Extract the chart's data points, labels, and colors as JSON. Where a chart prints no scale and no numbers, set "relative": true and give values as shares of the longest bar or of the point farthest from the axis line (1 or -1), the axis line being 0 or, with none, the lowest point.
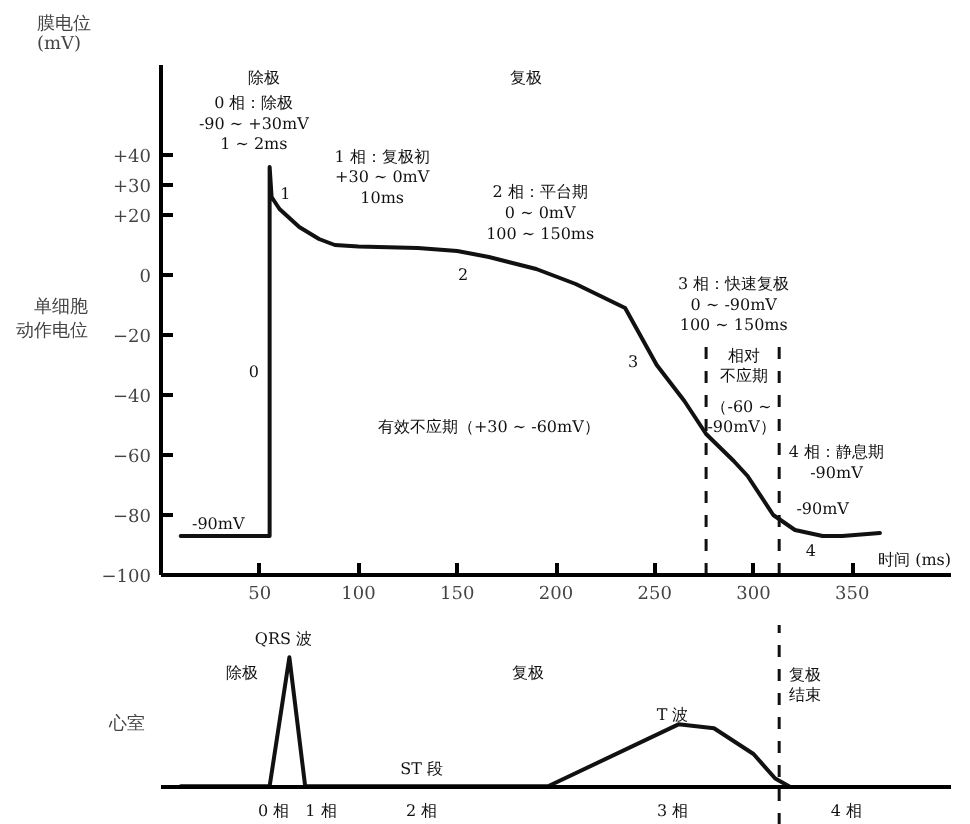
{
  "chart_data": [
    {
      "type": "line",
      "title": "单细胞动作电位",
      "ylabel": "膜电位\n(mV)",
      "xlabel": "时间 (ms)",
      "x": [
        10,
        55,
        55,
        56,
        60,
        70,
        80,
        88,
        100,
        130,
        150,
        166,
        190,
        210,
        235,
        251,
        265,
        276,
        290,
        297,
        310,
        321,
        335,
        345,
        364
      ],
      "series": [
        {
          "color": "#111111",
          "values": [
            -87,
            -87,
            36,
            26,
            22,
            16,
            12,
            10,
            9.5,
            9,
            8,
            6,
            2,
            -3,
            -11,
            -30,
            -42,
            -53,
            -62,
            -67,
            -80,
            -85,
            -87,
            -87,
            -86
          ]
        }
      ],
      "xlim": [
        0,
        400
      ],
      "ylim": [
        -100,
        70
      ],
      "xticks": [
        50,
        100,
        150,
        200,
        250,
        300,
        350
      ],
      "yticks": [
        {
          "value": 40,
          "label": "+40"
        },
        {
          "value": 30,
          "label": "+30"
        },
        {
          "value": 20,
          "label": "+20"
        },
        0,
        -20,
        -40,
        -60,
        -80,
        -100
      ],
      "marker": "none",
      "line_style": "solid",
      "ref_lines": [
        {
          "axis": "x",
          "value": 276,
          "color": "#111111",
          "line_style": "dashed"
        },
        {
          "axis": "x",
          "value": 313,
          "color": "#111111",
          "line_style": "dashed"
        }
      ],
      "annotations": [
        "除极",
        "复极",
        "0 相：除极\n-90 ~ +30mV\n1 ~ 2ms",
        "1",
        "1 相：复极初\n+30 ~ 0mV\n10ms",
        "2 相：平台期\n0 ~ 0mV\n100 ~ 150ms",
        "2",
        "3 相：快速复极\n0 ~ -90mV\n100 ~ 150ms",
        "3",
        "0",
        "有效不应期（+30 ~ -60mV）",
        "相对不应期",
        "（-60 ~\n-90mV）",
        "4 相：静息期\n-90mV",
        "-90mV",
        "4",
        "-90mV"
      ]
    },
    {
      "type": "line",
      "title": "心室",
      "relative": true,
      "tick_labels": false,
      "x": [
        10,
        55,
        65,
        73,
        196,
        262,
        280,
        300,
        311,
        318
      ],
      "series": [
        {
          "color": "#111111",
          "values": [
            0,
            0,
            1,
            0,
            0,
            0.48,
            0.45,
            0.25,
            0.06,
            0
          ]
        }
      ],
      "xlim": [
        0,
        400
      ],
      "marker": "none",
      "line_style": "solid",
      "ref_lines": [
        {
          "axis": "x",
          "value": 313,
          "color": "#111111",
          "line_style": "dashed"
        }
      ],
      "annotations": [
        "QRS 波",
        "除极",
        "复极",
        "复极结束",
        "T 波",
        "ST 段",
        "0 相",
        "1 相",
        "2 相",
        "3 相",
        "4 相"
      ]
    }
  ]
}
